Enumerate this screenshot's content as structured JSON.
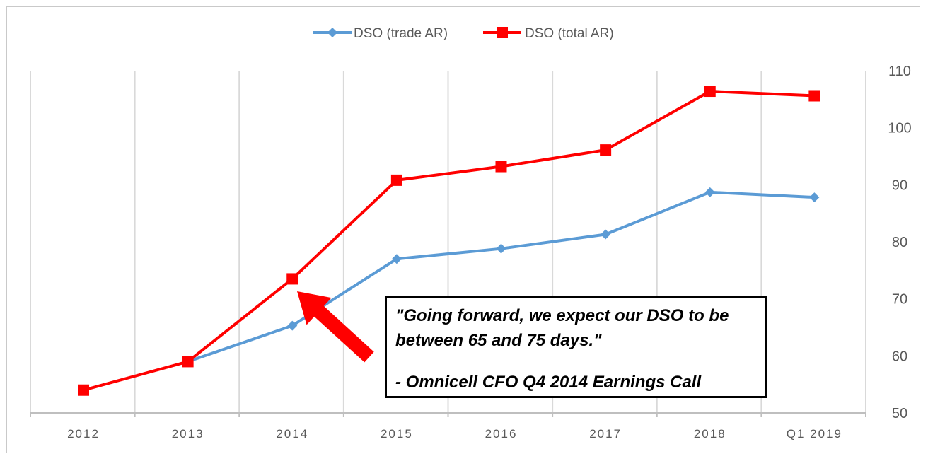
{
  "chart_data": {
    "type": "line",
    "categories": [
      "2012",
      "2013",
      "2014",
      "2015",
      "2016",
      "2017",
      "2018",
      "Q1 2019"
    ],
    "series": [
      {
        "name": "DSO (trade AR)",
        "color": "#5B9BD5",
        "marker": "diamond",
        "values": [
          null,
          59,
          65.3,
          77,
          78.8,
          81.3,
          88.7,
          87.8
        ]
      },
      {
        "name": "DSO (total AR)",
        "color": "#FF0000",
        "marker": "square",
        "values": [
          54,
          59,
          73.5,
          90.8,
          93.2,
          96.1,
          106.4,
          105.6
        ]
      }
    ],
    "ylim": [
      50,
      110
    ],
    "yticks": [
      "50",
      "60",
      "70",
      "80",
      "90",
      "100",
      "110"
    ],
    "y_axis_side": "right",
    "grid": "vertical",
    "legend": "top-center",
    "annotation": {
      "line1": "\"Going forward, we expect our DSO to be",
      "line2": "between 65 and 75 days.\"",
      "line3": "- Omnicell CFO Q4 2014 Earnings Call",
      "arrow_color": "#FF0000",
      "arrow_target": "2014"
    }
  }
}
